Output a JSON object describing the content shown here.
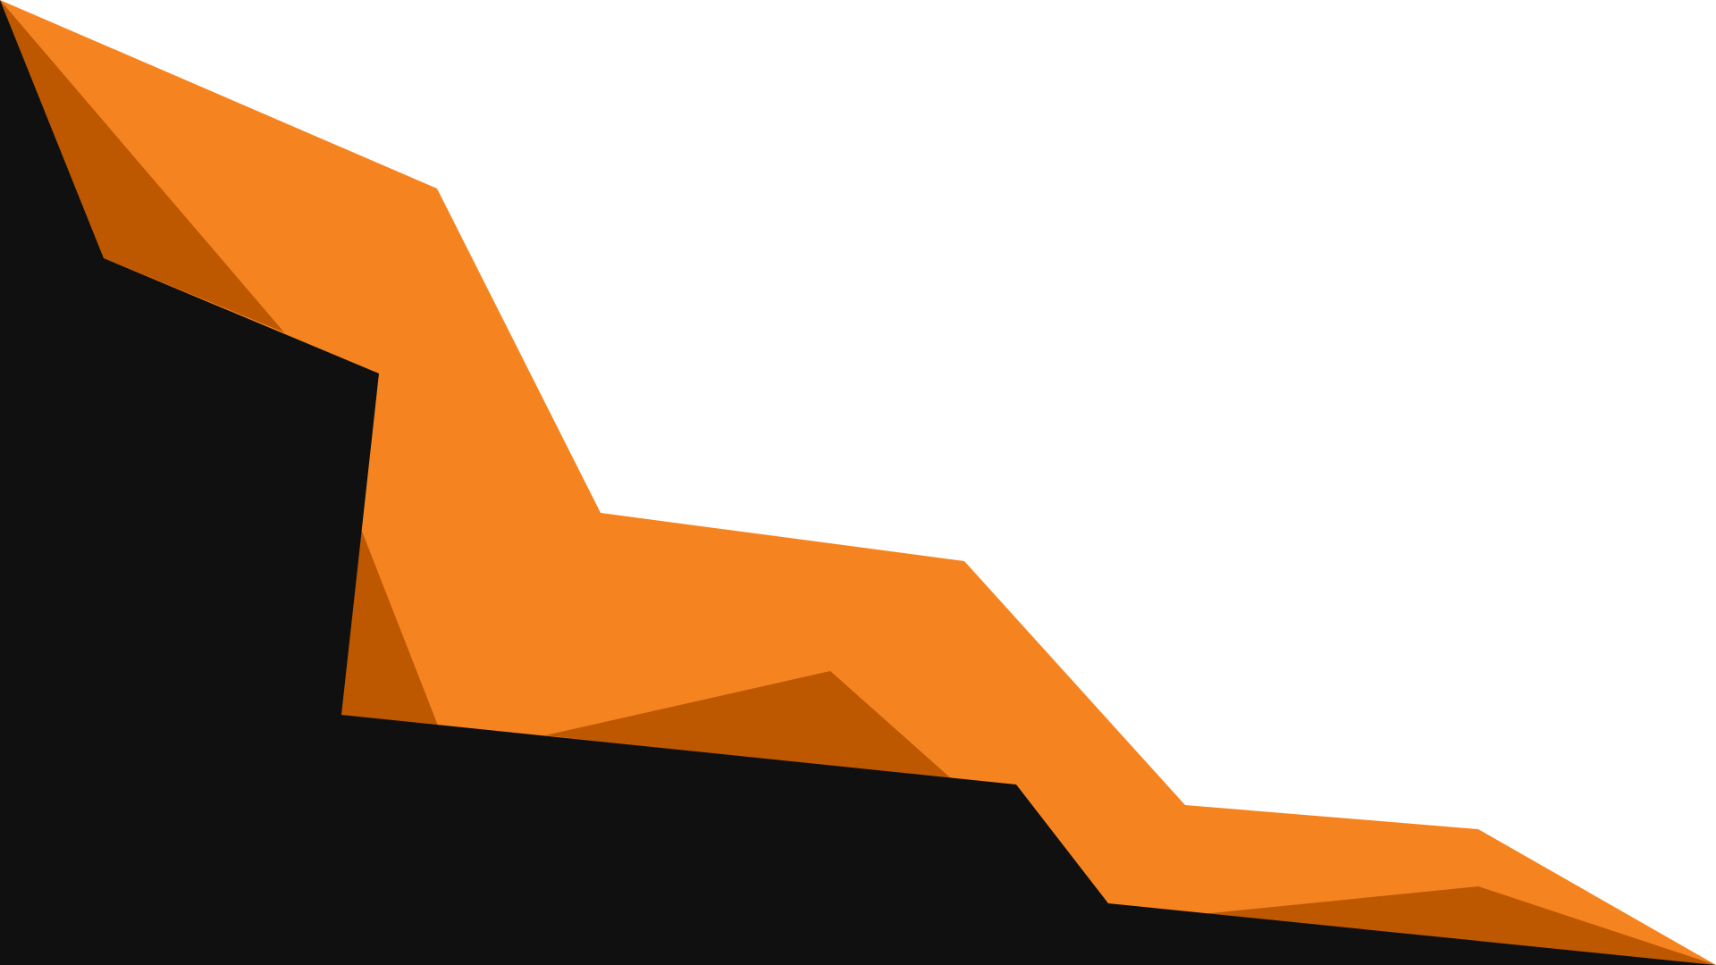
{
  "artwork": {
    "background_color": "#ffffff",
    "layers": [
      {
        "name": "orange-mountain-layer",
        "color": "#f58420"
      },
      {
        "name": "dark-orange-shadow-layer",
        "color": "#bd5800"
      },
      {
        "name": "black-foreground-layer",
        "color": "#101010"
      }
    ]
  }
}
